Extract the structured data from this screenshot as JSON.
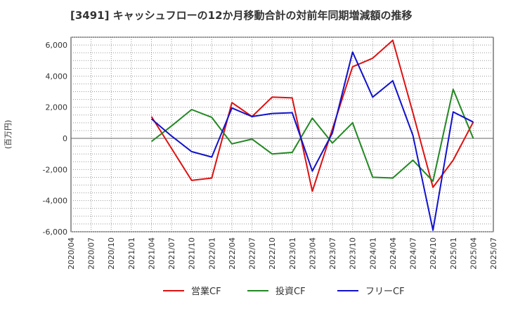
{
  "chart_data": {
    "type": "line",
    "title": "[3491]  キャッシュフローの12か月移動合計の対前年同期増減額の推移",
    "ylabel": "(百万円)",
    "xlabel": "",
    "ylim": [
      -6000,
      6500
    ],
    "yticks": [
      -6000,
      -4000,
      -2000,
      0,
      2000,
      4000,
      6000
    ],
    "ytick_labels": [
      "-6,000",
      "-4,000",
      "-2,000",
      "0",
      "2,000",
      "4,000",
      "6,000"
    ],
    "x_ticks": [
      "2020/04",
      "2020/07",
      "2020/10",
      "2021/01",
      "2021/04",
      "2021/07",
      "2021/10",
      "2022/01",
      "2022/04",
      "2022/07",
      "2022/10",
      "2023/01",
      "2023/04",
      "2023/07",
      "2023/10",
      "2024/01",
      "2024/04",
      "2024/07",
      "2024/10",
      "2025/01",
      "2025/04",
      "2025/07"
    ],
    "grid": true,
    "legend_position": "bottom",
    "series": [
      {
        "name": "営業CF",
        "color": "#dd1111",
        "x": [
          "2021/04",
          "2021/07",
          "2021/10",
          "2022/01",
          "2022/04",
          "2022/07",
          "2022/10",
          "2023/01",
          "2023/04",
          "2023/07",
          "2023/10",
          "2024/01",
          "2024/04",
          "2024/07",
          "2024/10",
          "2025/01",
          "2025/04"
        ],
        "values": [
          1400,
          -650,
          -2700,
          -2550,
          2300,
          1400,
          2650,
          2600,
          -3400,
          600,
          4600,
          5150,
          6300,
          1650,
          -3150,
          -1400,
          1050
        ]
      },
      {
        "name": "投資CF",
        "color": "#228822",
        "x": [
          "2021/04",
          "2021/07",
          "2021/10",
          "2022/01",
          "2022/04",
          "2022/07",
          "2022/10",
          "2023/01",
          "2023/04",
          "2023/07",
          "2023/10",
          "2024/01",
          "2024/04",
          "2024/07",
          "2024/10",
          "2025/01",
          "2025/04"
        ],
        "values": [
          -200,
          800,
          1850,
          1350,
          -350,
          -50,
          -1000,
          -900,
          1300,
          -300,
          1000,
          -2500,
          -2550,
          -1400,
          -2750,
          3150,
          0
        ]
      },
      {
        "name": "フリーCF",
        "color": "#1111cc",
        "x": [
          "2021/04",
          "2021/07",
          "2021/10",
          "2022/01",
          "2022/04",
          "2022/07",
          "2022/10",
          "2023/01",
          "2023/04",
          "2023/07",
          "2023/10",
          "2024/01",
          "2024/04",
          "2024/07",
          "2024/10",
          "2025/01",
          "2025/04"
        ],
        "values": [
          1250,
          150,
          -850,
          -1200,
          1950,
          1400,
          1600,
          1650,
          -2100,
          350,
          5550,
          2650,
          3700,
          200,
          -5900,
          1700,
          1050
        ]
      }
    ]
  }
}
